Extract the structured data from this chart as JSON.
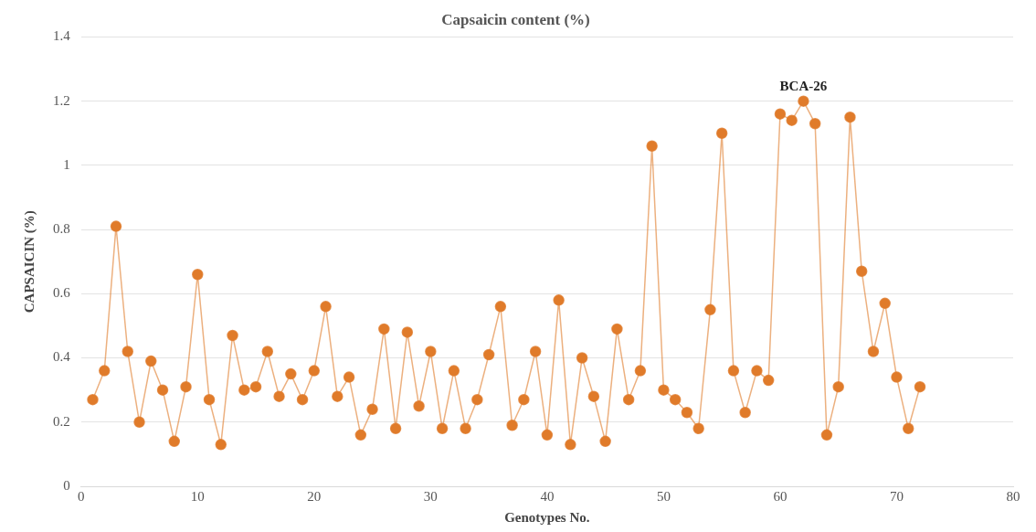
{
  "chart_data": {
    "type": "line",
    "title": "Capsaicin content (%)",
    "xlabel": "Genotypes No.",
    "ylabel": "CAPSAICIN (%)",
    "x": [
      1,
      2,
      3,
      4,
      5,
      6,
      7,
      8,
      9,
      10,
      11,
      12,
      13,
      14,
      15,
      16,
      17,
      18,
      19,
      20,
      21,
      22,
      23,
      24,
      25,
      26,
      27,
      28,
      29,
      30,
      31,
      32,
      33,
      34,
      35,
      36,
      37,
      38,
      39,
      40,
      41,
      42,
      43,
      44,
      45,
      46,
      47,
      48,
      49,
      50,
      51,
      52,
      53,
      54,
      55,
      56,
      57,
      58,
      59,
      60,
      61,
      62,
      63,
      64,
      65,
      66,
      67,
      68,
      69,
      70,
      71,
      72
    ],
    "series": [
      {
        "color": "#e07b2a",
        "values": [
          0.27,
          0.36,
          0.81,
          0.42,
          0.2,
          0.39,
          0.3,
          0.14,
          0.31,
          0.66,
          0.27,
          0.13,
          0.47,
          0.3,
          0.31,
          0.42,
          0.28,
          0.35,
          0.27,
          0.36,
          0.56,
          0.28,
          0.34,
          0.16,
          0.24,
          0.49,
          0.18,
          0.48,
          0.25,
          0.42,
          0.18,
          0.36,
          0.18,
          0.27,
          0.41,
          0.56,
          0.19,
          0.27,
          0.42,
          0.16,
          0.58,
          0.13,
          0.4,
          0.28,
          0.14,
          0.49,
          0.27,
          0.36,
          1.06,
          0.3,
          0.27,
          0.23,
          0.18,
          0.55,
          1.1,
          0.36,
          0.23,
          0.36,
          0.33,
          1.16,
          1.14,
          1.2,
          1.13,
          0.16,
          0.31,
          1.15,
          0.67,
          0.42,
          0.57,
          0.34,
          0.18,
          0.31
        ]
      }
    ],
    "xlim": [
      0,
      80
    ],
    "xticks": [
      0,
      10,
      20,
      30,
      40,
      50,
      60,
      70,
      80
    ],
    "ylim": [
      0,
      1.4
    ],
    "yticks": [
      0,
      0.2,
      0.4,
      0.6,
      0.8,
      1,
      1.2,
      1.4
    ],
    "grid": "y",
    "legend": false,
    "marker": "circle",
    "line_style": "solid",
    "annotations": [
      {
        "text": "BCA-26",
        "x": 62,
        "y": 1.2
      }
    ]
  }
}
